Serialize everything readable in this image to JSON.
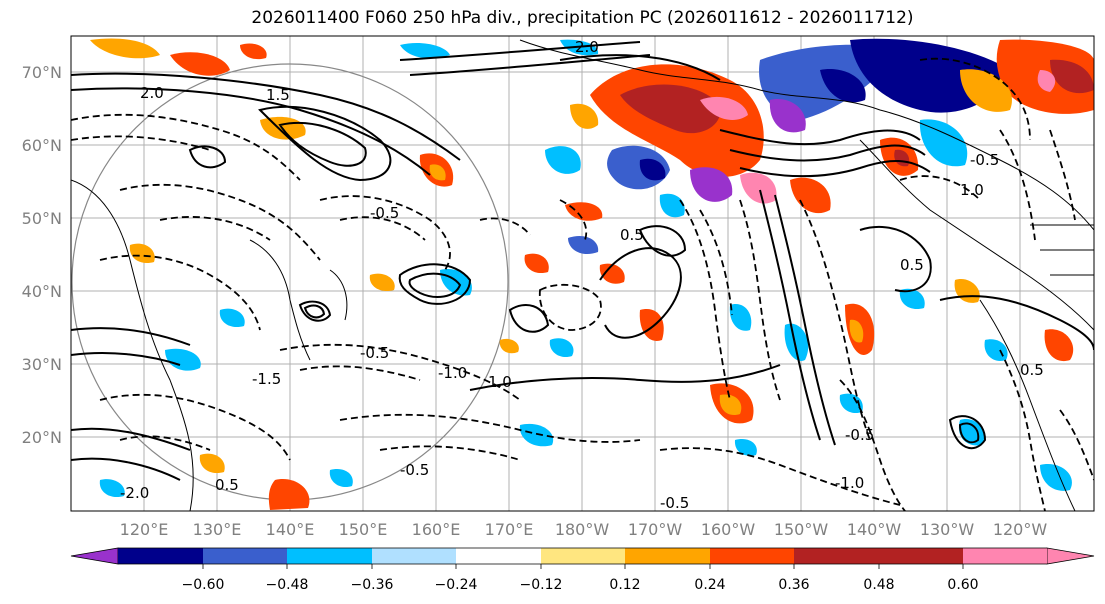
{
  "title": "2026011400 F060 250 hPa div., precipitation PC (2026011612 - 2026011712)",
  "map": {
    "lat_labels": [
      "70°N",
      "60°N",
      "50°N",
      "40°N",
      "30°N",
      "20°N"
    ],
    "lon_labels": [
      "120°E",
      "130°E",
      "140°E",
      "150°E",
      "160°E",
      "170°E",
      "180°W",
      "170°W",
      "160°W",
      "150°W",
      "140°W",
      "130°W",
      "120°W"
    ],
    "contour_labels": [
      "-0.5",
      "-1.0",
      "-1.5",
      "0.5",
      "1.0",
      "1.5",
      "2.0",
      "-2.0"
    ]
  },
  "colorbar": {
    "ticks": [
      "−0.60",
      "−0.48",
      "−0.36",
      "−0.24",
      "−0.12",
      "0.12",
      "0.24",
      "0.36",
      "0.48",
      "0.60"
    ],
    "colors": [
      "#9932cc",
      "#00008b",
      "#3a5fcd",
      "#00bfff",
      "#b0e0ff",
      "#ffffff",
      "#ffe680",
      "#ffa500",
      "#ff4500",
      "#b22222",
      "#ff85b0"
    ]
  }
}
